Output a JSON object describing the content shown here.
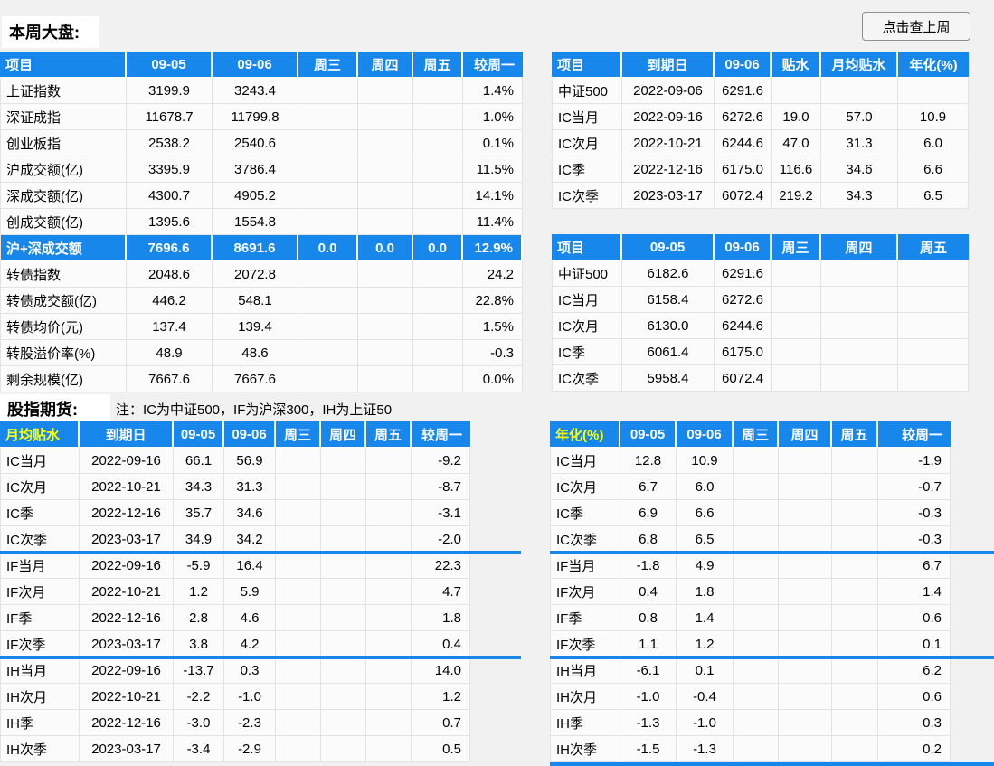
{
  "header": {
    "title": "本周大盘:",
    "last_week_button": "点击查上周"
  },
  "section_futures": {
    "label": "股指期货:",
    "note": "注：IC为中证500，IF为沪深300，IH为上证50"
  },
  "colors": {
    "header_blue": "#1787ec",
    "highlight_row_blue": "#1787ec",
    "divider_blue": "#1787ec",
    "yellow_header_text": "#ffff00"
  },
  "market_table": {
    "headers": [
      "项目",
      "09-05",
      "09-06",
      "周三",
      "周四",
      "周五",
      "较周一"
    ],
    "rows": [
      {
        "cells": [
          "上证指数",
          "3199.9",
          "3243.4",
          "",
          "",
          "",
          "1.4%"
        ]
      },
      {
        "cells": [
          "深证成指",
          "11678.7",
          "11799.8",
          "",
          "",
          "",
          "1.0%"
        ]
      },
      {
        "cells": [
          "创业板指",
          "2538.2",
          "2540.6",
          "",
          "",
          "",
          "0.1%"
        ]
      },
      {
        "cells": [
          "沪成交额(亿)",
          "3395.9",
          "3786.4",
          "",
          "",
          "",
          "11.5%"
        ]
      },
      {
        "cells": [
          "深成交额(亿)",
          "4300.7",
          "4905.2",
          "",
          "",
          "",
          "14.1%"
        ]
      },
      {
        "cells": [
          "创成交额(亿)",
          "1395.6",
          "1554.8",
          "",
          "",
          "",
          "11.4%"
        ]
      },
      {
        "cells": [
          "沪+深成交额",
          "7696.6",
          "8691.6",
          "0.0",
          "0.0",
          "0.0",
          "12.9%"
        ],
        "highlight": true
      },
      {
        "cells": [
          "转债指数",
          "2048.6",
          "2072.8",
          "",
          "",
          "",
          "24.2"
        ]
      },
      {
        "cells": [
          "转债成交额(亿)",
          "446.2",
          "548.1",
          "",
          "",
          "",
          "22.8%"
        ]
      },
      {
        "cells": [
          "转债均价(元)",
          "137.4",
          "139.4",
          "",
          "",
          "",
          "1.5%"
        ]
      },
      {
        "cells": [
          "转股溢价率(%)",
          "48.9",
          "48.6",
          "",
          "",
          "",
          "-0.3"
        ]
      },
      {
        "cells": [
          "剩余规模(亿)",
          "7667.6",
          "7667.6",
          "",
          "",
          "",
          "0.0%"
        ]
      }
    ]
  },
  "expiry_table": {
    "headers": [
      "项目",
      "到期日",
      "09-06",
      "贴水",
      "月均贴水",
      "年化(%)"
    ],
    "rows": [
      {
        "cells": [
          "中证500",
          "2022-09-06",
          "6291.6",
          "",
          "",
          ""
        ]
      },
      {
        "cells": [
          "IC当月",
          "2022-09-16",
          "6272.6",
          "19.0",
          "57.0",
          "10.9"
        ]
      },
      {
        "cells": [
          "IC次月",
          "2022-10-21",
          "6244.6",
          "47.0",
          "31.3",
          "6.0"
        ]
      },
      {
        "cells": [
          "IC季",
          "2022-12-16",
          "6175.0",
          "116.6",
          "34.6",
          "6.6"
        ]
      },
      {
        "cells": [
          "IC次季",
          "2023-03-17",
          "6072.4",
          "219.2",
          "34.3",
          "6.5"
        ]
      }
    ]
  },
  "price_table": {
    "headers": [
      "项目",
      "09-05",
      "09-06",
      "周三",
      "周四",
      "周五"
    ],
    "rows": [
      {
        "cells": [
          "中证500",
          "6182.6",
          "6291.6",
          "",
          "",
          ""
        ]
      },
      {
        "cells": [
          "IC当月",
          "6158.4",
          "6272.6",
          "",
          "",
          ""
        ]
      },
      {
        "cells": [
          "IC次月",
          "6130.0",
          "6244.6",
          "",
          "",
          ""
        ]
      },
      {
        "cells": [
          "IC季",
          "6061.4",
          "6175.0",
          "",
          "",
          ""
        ]
      },
      {
        "cells": [
          "IC次季",
          "5958.4",
          "6072.4",
          "",
          "",
          ""
        ]
      }
    ]
  },
  "monthly_basis_table": {
    "headers": [
      "月均贴水",
      "到期日",
      "09-05",
      "09-06",
      "周三",
      "周四",
      "周五",
      "较周一"
    ],
    "rows": [
      {
        "cells": [
          "IC当月",
          "2022-09-16",
          "66.1",
          "56.9",
          "",
          "",
          "",
          "-9.2"
        ]
      },
      {
        "cells": [
          "IC次月",
          "2022-10-21",
          "34.3",
          "31.3",
          "",
          "",
          "",
          "-8.7"
        ]
      },
      {
        "cells": [
          "IC季",
          "2022-12-16",
          "35.7",
          "34.6",
          "",
          "",
          "",
          "-3.1"
        ]
      },
      {
        "cells": [
          "IC次季",
          "2023-03-17",
          "34.9",
          "34.2",
          "",
          "",
          "",
          "-2.0"
        ]
      },
      {
        "cells": [
          "IF当月",
          "2022-09-16",
          "-5.9",
          "16.4",
          "",
          "",
          "",
          "22.3"
        ]
      },
      {
        "cells": [
          "IF次月",
          "2022-10-21",
          "1.2",
          "5.9",
          "",
          "",
          "",
          "4.7"
        ]
      },
      {
        "cells": [
          "IF季",
          "2022-12-16",
          "2.8",
          "4.6",
          "",
          "",
          "",
          "1.8"
        ]
      },
      {
        "cells": [
          "IF次季",
          "2023-03-17",
          "3.8",
          "4.2",
          "",
          "",
          "",
          "0.4"
        ]
      },
      {
        "cells": [
          "IH当月",
          "2022-09-16",
          "-13.7",
          "0.3",
          "",
          "",
          "",
          "14.0"
        ]
      },
      {
        "cells": [
          "IH次月",
          "2022-10-21",
          "-2.2",
          "-1.0",
          "",
          "",
          "",
          "1.2"
        ]
      },
      {
        "cells": [
          "IH季",
          "2022-12-16",
          "-3.0",
          "-2.3",
          "",
          "",
          "",
          "0.7"
        ]
      },
      {
        "cells": [
          "IH次季",
          "2023-03-17",
          "-3.4",
          "-2.9",
          "",
          "",
          "",
          "0.5"
        ]
      }
    ]
  },
  "annualized_table": {
    "headers": [
      "年化(%)",
      "09-05",
      "09-06",
      "周三",
      "周四",
      "周五",
      "较周一"
    ],
    "rows": [
      {
        "cells": [
          "IC当月",
          "12.8",
          "10.9",
          "",
          "",
          "",
          "-1.9"
        ]
      },
      {
        "cells": [
          "IC次月",
          "6.7",
          "6.0",
          "",
          "",
          "",
          "-0.7"
        ]
      },
      {
        "cells": [
          "IC季",
          "6.9",
          "6.6",
          "",
          "",
          "",
          "-0.3"
        ]
      },
      {
        "cells": [
          "IC次季",
          "6.8",
          "6.5",
          "",
          "",
          "",
          "-0.3"
        ]
      },
      {
        "cells": [
          "IF当月",
          "-1.8",
          "4.9",
          "",
          "",
          "",
          "6.7"
        ]
      },
      {
        "cells": [
          "IF次月",
          "0.4",
          "1.8",
          "",
          "",
          "",
          "1.4"
        ]
      },
      {
        "cells": [
          "IF季",
          "0.8",
          "1.4",
          "",
          "",
          "",
          "0.6"
        ]
      },
      {
        "cells": [
          "IF次季",
          "1.1",
          "1.2",
          "",
          "",
          "",
          "0.1"
        ]
      },
      {
        "cells": [
          "IH当月",
          "-6.1",
          "0.1",
          "",
          "",
          "",
          "6.2"
        ]
      },
      {
        "cells": [
          "IH次月",
          "-1.0",
          "-0.4",
          "",
          "",
          "",
          "0.6"
        ]
      },
      {
        "cells": [
          "IH季",
          "-1.3",
          "-1.0",
          "",
          "",
          "",
          "0.3"
        ]
      },
      {
        "cells": [
          "IH次季",
          "-1.5",
          "-1.3",
          "",
          "",
          "",
          "0.2"
        ]
      }
    ]
  }
}
